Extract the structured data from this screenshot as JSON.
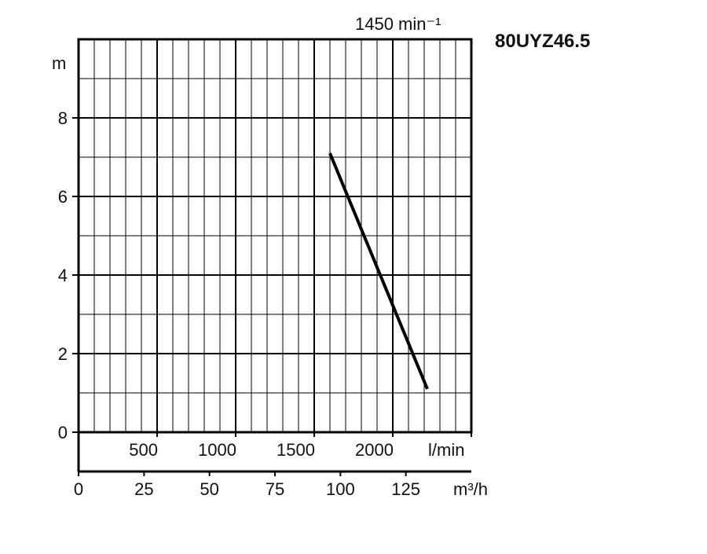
{
  "chart_data": {
    "type": "line",
    "title": "80UYZ46.5",
    "subtitle": "1450 min⁻¹",
    "ylabel": "m",
    "xlabel_lmin": "l/min",
    "xlabel_m3h": "m³/h",
    "ylim": [
      0,
      10
    ],
    "xlim_lmin": [
      0,
      2500
    ],
    "y_ticks": [
      "0",
      "2",
      "4",
      "6",
      "8"
    ],
    "y_tick_values": [
      0,
      2,
      4,
      6,
      8
    ],
    "x_ticks_lmin": [
      "500",
      "1000",
      "1500",
      "2000"
    ],
    "x_tick_values_lmin": [
      500,
      1000,
      1500,
      2000
    ],
    "x_ticks_m3h": [
      "0",
      "25",
      "50",
      "75",
      "100",
      "125"
    ],
    "x_tick_values_m3h": [
      0,
      25,
      50,
      75,
      100,
      125
    ],
    "grid": true,
    "series": [
      {
        "x_lmin": [
          1600,
          2220
        ],
        "y": [
          7.1,
          1.1
        ]
      }
    ]
  }
}
